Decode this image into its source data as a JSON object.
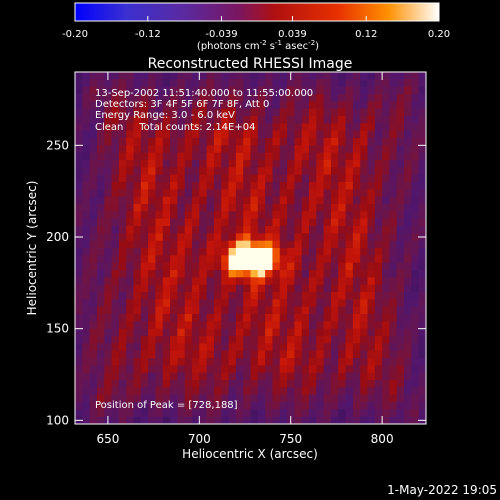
{
  "colorbar": {
    "ticks": [
      "-0.20",
      "-0.12",
      "-0.039",
      "0.039",
      "0.12",
      "0.20"
    ],
    "range": [
      -0.2,
      0.2
    ],
    "unit_parts": [
      "(photons cm",
      "-2",
      " s",
      "-1",
      " asec",
      "-2",
      ")"
    ]
  },
  "chart_data": {
    "type": "heatmap",
    "title": "Reconstructed RHESSI Image",
    "xlabel": "Heliocentric X (arcsec)",
    "ylabel": "Heliocentric Y (arcsec)",
    "xlim": [
      632,
      824
    ],
    "ylim": [
      98,
      290
    ],
    "xticks": [
      650,
      700,
      750,
      800
    ],
    "yticks": [
      100,
      150,
      200,
      250
    ],
    "colormap": "hot-on-purple",
    "annotations": [
      "13-Sep-2002 11:51:40.000 to 11:55:00.000",
      "Detectors: 3F 4F 5F 6F 7F 8F, Att 0",
      "Energy Range: 3.0 - 6.0 keV",
      "Clean     Total counts: 2.14E+04"
    ],
    "peak_label": "Position of Peak = [728,188]",
    "peak": [
      728,
      188
    ]
  },
  "footer": {
    "timestamp": "1-May-2022 19:05"
  }
}
